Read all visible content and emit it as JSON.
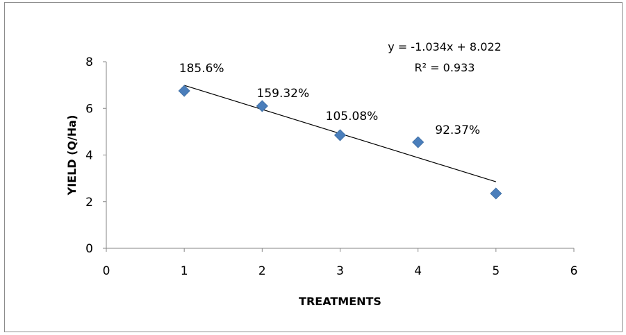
{
  "chart_data": {
    "type": "scatter",
    "title": "",
    "xlabel": "TREATMENTS",
    "ylabel": "YIELD  (Q/Ha)",
    "xlim": [
      0,
      6
    ],
    "ylim": [
      0,
      8
    ],
    "x_ticks": [
      "0",
      "1",
      "2",
      "3",
      "4",
      "5",
      "6"
    ],
    "y_ticks": [
      "0",
      "2",
      "4",
      "6",
      "8"
    ],
    "grid": false,
    "legend": "none",
    "series": [
      {
        "x": [
          1,
          2,
          3,
          4,
          5
        ],
        "y": [
          6.75,
          6.1,
          4.85,
          4.55,
          2.35
        ],
        "color": "#4a7ebb",
        "marker": "diamond",
        "labels": [
          "185.6%",
          "159.32%",
          "105.08%",
          "92.37%",
          ""
        ]
      }
    ],
    "trendline": {
      "type": "linear",
      "slope": -1.034,
      "intercept": 8.022,
      "x_range": [
        1,
        5
      ],
      "color": "#000000",
      "equation_text": "y = -1.034x + 8.022",
      "r2_text": "R² = 0.933"
    }
  }
}
